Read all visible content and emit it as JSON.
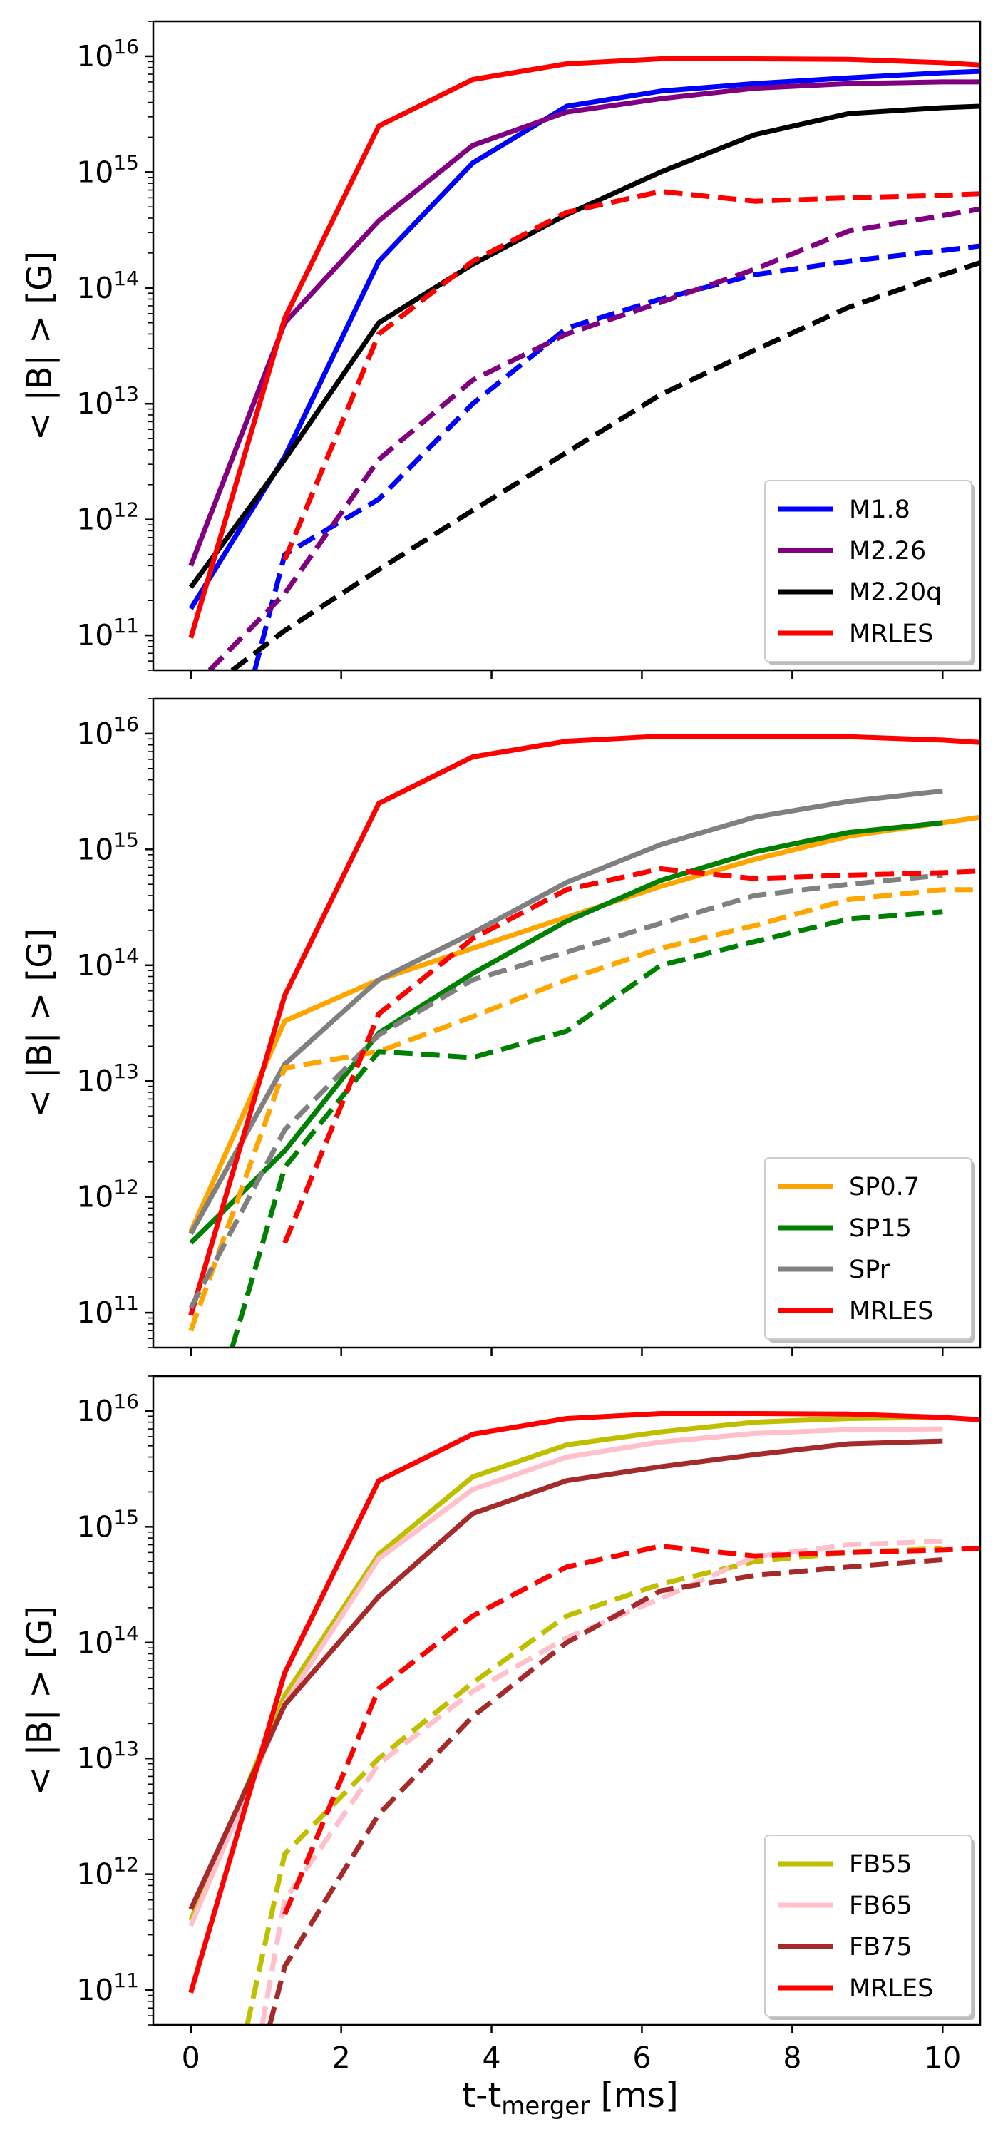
{
  "figure": {
    "x_axis_label": "t-t",
    "x_axis_label_sub": "merger",
    "x_axis_label_unit": " [ms]"
  },
  "chart_data": [
    {
      "type": "line",
      "panel": "top",
      "ylabel": "< |B| > [G]",
      "xlabel": "",
      "yscale": "log",
      "xlim": [
        -0.5,
        10.5
      ],
      "ylim": [
        50000000000.0,
        2e+16
      ],
      "x_ticks": [
        0,
        2,
        4,
        6,
        8,
        10
      ],
      "y_ticks": [
        {
          "value": 100000000000.0,
          "base": "10",
          "exp": "11"
        },
        {
          "value": 1000000000000.0,
          "base": "10",
          "exp": "12"
        },
        {
          "value": 10000000000000.0,
          "base": "10",
          "exp": "13"
        },
        {
          "value": 100000000000000.0,
          "base": "10",
          "exp": "14"
        },
        {
          "value": 1000000000000000.0,
          "base": "10",
          "exp": "15"
        },
        {
          "value": 1e+16,
          "base": "10",
          "exp": "16"
        }
      ],
      "legend_position": "lower-right",
      "series": [
        {
          "name": "M1.8",
          "color": "#0000ff",
          "style": "solid",
          "x": [
            0,
            1.25,
            2.5,
            3.75,
            5,
            6.25,
            7.5,
            8.75,
            10,
            10.5
          ],
          "y": [
            170000000000.0,
            3500000000000.0,
            170000000000000.0,
            1200000000000000.0,
            3700000000000000.0,
            5000000000000000.0,
            5800000000000000.0,
            6500000000000000.0,
            7200000000000000.0,
            7400000000000000.0
          ]
        },
        {
          "name": "M2.26",
          "color": "#800080",
          "style": "solid",
          "x": [
            0,
            1.25,
            2.5,
            3.75,
            5,
            6.25,
            7.5,
            8.75,
            10,
            10.5
          ],
          "y": [
            400000000000.0,
            50000000000000.0,
            380000000000000.0,
            1700000000000000.0,
            3300000000000000.0,
            4300000000000000.0,
            5300000000000000.0,
            5800000000000000.0,
            6000000000000000.0,
            6000000000000000.0
          ]
        },
        {
          "name": "M2.20q",
          "color": "#000000",
          "style": "solid",
          "x": [
            0,
            1.25,
            2.5,
            3.75,
            5,
            6.25,
            7.5,
            8.75,
            10,
            10.5
          ],
          "y": [
            260000000000.0,
            3300000000000.0,
            50000000000000.0,
            160000000000000.0,
            430000000000000.0,
            1000000000000000.0,
            2100000000000000.0,
            3200000000000000.0,
            3600000000000000.0,
            3700000000000000.0
          ]
        },
        {
          "name": "MRLES",
          "color": "#ff0000",
          "style": "solid",
          "x": [
            0,
            1.25,
            2.5,
            3.75,
            5,
            6.25,
            7.5,
            8.75,
            10,
            10.5
          ],
          "y": [
            95000000000.0,
            55000000000000.0,
            2500000000000000.0,
            6300000000000000.0,
            8600000000000000.0,
            9500000000000000.0,
            9500000000000000.0,
            9400000000000000.0,
            8800000000000000.0,
            8400000000000000.0
          ]
        },
        {
          "name": "M1.8 (dashed)",
          "color": "#0000ff",
          "style": "dashed",
          "x": [
            0.85,
            1.25,
            2.5,
            3.75,
            5,
            6.25,
            7.5,
            8.75,
            10,
            10.5
          ],
          "y": [
            50000000000.0,
            500000000000.0,
            1500000000000.0,
            10000000000000.0,
            45000000000000.0,
            80000000000000.0,
            130000000000000.0,
            170000000000000.0,
            210000000000000.0,
            230000000000000.0
          ]
        },
        {
          "name": "M2.26 (dashed)",
          "color": "#800080",
          "style": "dashed",
          "x": [
            0.25,
            1.25,
            2.5,
            3.75,
            5,
            6.25,
            7.5,
            8.75,
            10,
            10.5
          ],
          "y": [
            50000000000.0,
            230000000000.0,
            3300000000000.0,
            16000000000000.0,
            40000000000000.0,
            75000000000000.0,
            145000000000000.0,
            310000000000000.0,
            420000000000000.0,
            480000000000000.0
          ]
        },
        {
          "name": "M2.20q (dashed)",
          "color": "#000000",
          "style": "dashed",
          "x": [
            0.55,
            1.25,
            2.5,
            3.75,
            5,
            6.25,
            7.5,
            8.75,
            10,
            10.5
          ],
          "y": [
            50000000000.0,
            110000000000.0,
            370000000000.0,
            1200000000000.0,
            3800000000000.0,
            12000000000000.0,
            29000000000000.0,
            68000000000000.0,
            130000000000000.0,
            165000000000000.0
          ]
        },
        {
          "name": "MRLES (dashed)",
          "color": "#ff0000",
          "style": "dashed",
          "x": [
            1.25,
            2.5,
            3.75,
            5,
            6.25,
            7.5,
            8.75,
            10,
            10.5
          ],
          "y": [
            450000000000.0,
            40000000000000.0,
            170000000000000.0,
            450000000000000.0,
            680000000000000.0,
            560000000000000.0,
            600000000000000.0,
            630000000000000.0,
            650000000000000.0
          ]
        }
      ],
      "legend": [
        {
          "label": "M1.8",
          "color": "#0000ff"
        },
        {
          "label": "M2.26",
          "color": "#800080"
        },
        {
          "label": "M2.20q",
          "color": "#000000"
        },
        {
          "label": "MRLES",
          "color": "#ff0000"
        }
      ]
    },
    {
      "type": "line",
      "panel": "middle",
      "ylabel": "< |B| > [G]",
      "xlabel": "",
      "yscale": "log",
      "xlim": [
        -0.5,
        10.5
      ],
      "ylim": [
        50000000000.0,
        2e+16
      ],
      "x_ticks": [
        0,
        2,
        4,
        6,
        8,
        10
      ],
      "y_ticks": [
        {
          "value": 100000000000.0,
          "base": "10",
          "exp": "11"
        },
        {
          "value": 1000000000000.0,
          "base": "10",
          "exp": "12"
        },
        {
          "value": 10000000000000.0,
          "base": "10",
          "exp": "13"
        },
        {
          "value": 100000000000000.0,
          "base": "10",
          "exp": "14"
        },
        {
          "value": 1000000000000000.0,
          "base": "10",
          "exp": "15"
        },
        {
          "value": 1e+16,
          "base": "10",
          "exp": "16"
        }
      ],
      "legend_position": "lower-right",
      "series": [
        {
          "name": "SP0.7",
          "color": "#ffa500",
          "style": "solid",
          "x": [
            0,
            1.25,
            2.5,
            3.75,
            5,
            6.25,
            7.5,
            8.75,
            10,
            10.5
          ],
          "y": [
            500000000000.0,
            33000000000000.0,
            75000000000000.0,
            140000000000000.0,
            260000000000000.0,
            480000000000000.0,
            820000000000000.0,
            1300000000000000.0,
            1700000000000000.0,
            1900000000000000.0
          ]
        },
        {
          "name": "SP15",
          "color": "#008000",
          "style": "solid",
          "x": [
            0,
            1.25,
            2.5,
            3.75,
            5,
            6.25,
            7.5,
            8.75,
            10
          ],
          "y": [
            400000000000.0,
            2500000000000.0,
            26000000000000.0,
            85000000000000.0,
            240000000000000.0,
            540000000000000.0,
            950000000000000.0,
            1400000000000000.0,
            1700000000000000.0
          ]
        },
        {
          "name": "SPr",
          "color": "#808080",
          "style": "solid",
          "x": [
            0,
            1.25,
            2.5,
            3.75,
            5,
            6.25,
            7.5,
            8.75,
            10
          ],
          "y": [
            480000000000.0,
            14000000000000.0,
            75000000000000.0,
            190000000000000.0,
            520000000000000.0,
            1100000000000000.0,
            1900000000000000.0,
            2600000000000000.0,
            3200000000000000.0
          ]
        },
        {
          "name": "MRLES",
          "color": "#ff0000",
          "style": "solid",
          "x": [
            0,
            1.25,
            2.5,
            3.75,
            5,
            6.25,
            7.5,
            8.75,
            10,
            10.5
          ],
          "y": [
            95000000000.0,
            55000000000000.0,
            2500000000000000.0,
            6300000000000000.0,
            8600000000000000.0,
            9500000000000000.0,
            9500000000000000.0,
            9400000000000000.0,
            8800000000000000.0,
            8400000000000000.0
          ]
        },
        {
          "name": "SP0.7 (dashed)",
          "color": "#ffa500",
          "style": "dashed",
          "x": [
            0,
            1.25,
            2.5,
            3.75,
            5,
            6.25,
            7.5,
            8.75,
            10,
            10.5
          ],
          "y": [
            70000000000.0,
            13000000000000.0,
            18000000000000.0,
            36000000000000.0,
            75000000000000.0,
            140000000000000.0,
            220000000000000.0,
            370000000000000.0,
            450000000000000.0,
            450000000000000.0
          ]
        },
        {
          "name": "SP15 (dashed)",
          "color": "#008000",
          "style": "dashed",
          "x": [
            0.55,
            1.25,
            2.5,
            3.75,
            5,
            6.25,
            7.5,
            8.75,
            10
          ],
          "y": [
            50000000000.0,
            1800000000000.0,
            18000000000000.0,
            16000000000000.0,
            27000000000000.0,
            100000000000000.0,
            160000000000000.0,
            250000000000000.0,
            290000000000000.0
          ]
        },
        {
          "name": "SPr (dashed)",
          "color": "#808080",
          "style": "dashed",
          "x": [
            0,
            1.25,
            2.5,
            3.75,
            5,
            6.25,
            7.5,
            8.75,
            10
          ],
          "y": [
            110000000000.0,
            3800000000000.0,
            25000000000000.0,
            75000000000000.0,
            130000000000000.0,
            230000000000000.0,
            400000000000000.0,
            500000000000000.0,
            600000000000000.0
          ]
        },
        {
          "name": "MRLES (dashed)",
          "color": "#ff0000",
          "style": "dashed",
          "x": [
            1.25,
            2.5,
            3.75,
            5,
            6.25,
            7.5,
            8.75,
            10,
            10.5
          ],
          "y": [
            400000000000.0,
            38000000000000.0,
            170000000000000.0,
            450000000000000.0,
            680000000000000.0,
            560000000000000.0,
            600000000000000.0,
            630000000000000.0,
            650000000000000.0
          ]
        }
      ],
      "legend": [
        {
          "label": "SP0.7",
          "color": "#ffa500"
        },
        {
          "label": "SP15",
          "color": "#008000"
        },
        {
          "label": "SPr",
          "color": "#808080"
        },
        {
          "label": "MRLES",
          "color": "#ff0000"
        }
      ]
    },
    {
      "type": "line",
      "panel": "bottom",
      "ylabel": "< |B| > [G]",
      "xlabel": "t-t_merger [ms]",
      "yscale": "log",
      "xlim": [
        -0.5,
        10.5
      ],
      "ylim": [
        50000000000.0,
        2e+16
      ],
      "x_ticks": [
        0,
        2,
        4,
        6,
        8,
        10
      ],
      "y_ticks": [
        {
          "value": 100000000000.0,
          "base": "10",
          "exp": "11"
        },
        {
          "value": 1000000000000.0,
          "base": "10",
          "exp": "12"
        },
        {
          "value": 10000000000000.0,
          "base": "10",
          "exp": "13"
        },
        {
          "value": 100000000000000.0,
          "base": "10",
          "exp": "14"
        },
        {
          "value": 1000000000000000.0,
          "base": "10",
          "exp": "15"
        },
        {
          "value": 1e+16,
          "base": "10",
          "exp": "16"
        }
      ],
      "legend_position": "lower-right",
      "series": [
        {
          "name": "FB55",
          "color": "#bfbf00",
          "style": "solid",
          "x": [
            0,
            1.25,
            2.5,
            3.75,
            5,
            6.25,
            7.5,
            8.75,
            10
          ],
          "y": [
            400000000000.0,
            35000000000000.0,
            580000000000000.0,
            2700000000000000.0,
            5100000000000000.0,
            6600000000000000.0,
            8000000000000000.0,
            8600000000000000.0,
            8800000000000000.0
          ]
        },
        {
          "name": "FB65",
          "color": "#ffc0cb",
          "style": "solid",
          "x": [
            0,
            1.25,
            2.5,
            3.75,
            5,
            6.25,
            7.5,
            8.75,
            10
          ],
          "y": [
            360000000000.0,
            30000000000000.0,
            530000000000000.0,
            2100000000000000.0,
            4000000000000000.0,
            5400000000000000.0,
            6400000000000000.0,
            6900000000000000.0,
            7000000000000000.0
          ]
        },
        {
          "name": "FB75",
          "color": "#a52a2a",
          "style": "solid",
          "x": [
            0,
            1.25,
            2.5,
            3.75,
            5,
            6.25,
            7.5,
            8.75,
            10
          ],
          "y": [
            500000000000.0,
            29000000000000.0,
            250000000000000.0,
            1300000000000000.0,
            2500000000000000.0,
            3300000000000000.0,
            4200000000000000.0,
            5200000000000000.0,
            5500000000000000.0
          ]
        },
        {
          "name": "MRLES",
          "color": "#ff0000",
          "style": "solid",
          "x": [
            0,
            1.25,
            2.5,
            3.75,
            5,
            6.25,
            7.5,
            8.75,
            10,
            10.5
          ],
          "y": [
            95000000000.0,
            55000000000000.0,
            2500000000000000.0,
            6300000000000000.0,
            8600000000000000.0,
            9500000000000000.0,
            9500000000000000.0,
            9400000000000000.0,
            8800000000000000.0,
            8400000000000000.0
          ]
        },
        {
          "name": "FB55 (dashed)",
          "color": "#bfbf00",
          "style": "dashed",
          "x": [
            0.75,
            1.25,
            2.5,
            3.75,
            5,
            6.25,
            7.5,
            8.75,
            10
          ],
          "y": [
            50000000000.0,
            1500000000000.0,
            10000000000000.0,
            45000000000000.0,
            170000000000000.0,
            320000000000000.0,
            500000000000000.0,
            600000000000000.0,
            650000000000000.0
          ]
        },
        {
          "name": "FB65 (dashed)",
          "color": "#ffc0cb",
          "style": "dashed",
          "x": [
            0.95,
            1.25,
            2.5,
            3.75,
            5,
            6.25,
            7.5,
            8.75,
            10
          ],
          "y": [
            50000000000.0,
            600000000000.0,
            9000000000000.0,
            38000000000000.0,
            110000000000000.0,
            240000000000000.0,
            550000000000000.0,
            700000000000000.0,
            750000000000000.0
          ]
        },
        {
          "name": "FB75 (dashed)",
          "color": "#a52a2a",
          "style": "dashed",
          "x": [
            1.05,
            1.25,
            2.5,
            3.75,
            5,
            6.25,
            7.5,
            8.75,
            10
          ],
          "y": [
            50000000000.0,
            160000000000.0,
            3300000000000.0,
            23000000000000.0,
            100000000000000.0,
            280000000000000.0,
            380000000000000.0,
            450000000000000.0,
            520000000000000.0
          ]
        },
        {
          "name": "MRLES (dashed)",
          "color": "#ff0000",
          "style": "dashed",
          "x": [
            1.25,
            2.5,
            3.75,
            5,
            6.25,
            7.5,
            8.75,
            10,
            10.5
          ],
          "y": [
            450000000000.0,
            40000000000000.0,
            170000000000000.0,
            450000000000000.0,
            680000000000000.0,
            560000000000000.0,
            600000000000000.0,
            630000000000000.0,
            650000000000000.0
          ]
        }
      ],
      "legend": [
        {
          "label": "FB55",
          "color": "#bfbf00"
        },
        {
          "label": "FB65",
          "color": "#ffc0cb"
        },
        {
          "label": "FB75",
          "color": "#a52a2a"
        },
        {
          "label": "MRLES",
          "color": "#ff0000"
        }
      ]
    }
  ]
}
